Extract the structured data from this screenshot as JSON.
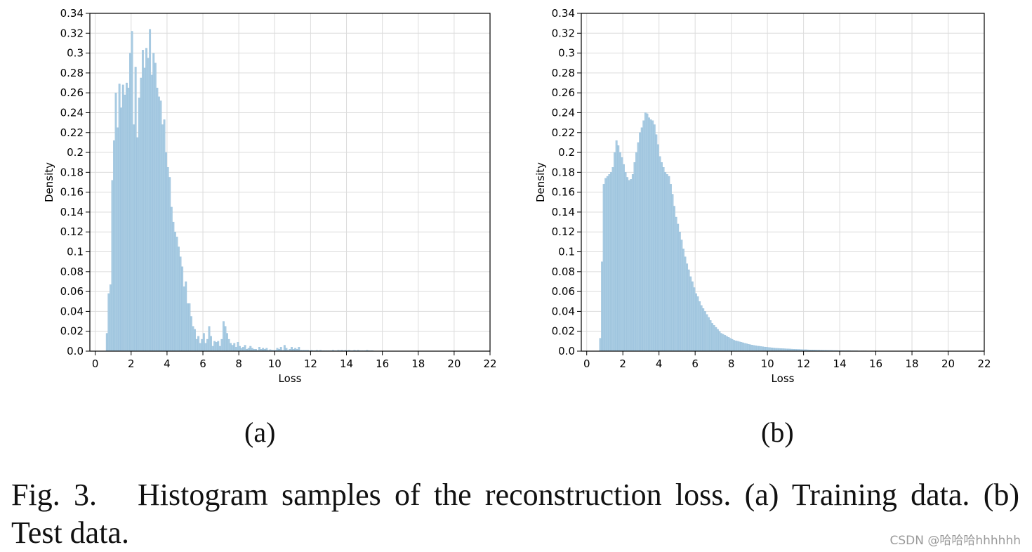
{
  "figure_number": "Fig. 3.",
  "caption_text": "Histogram samples of the reconstruction loss. (a) Training data. (b) Test data.",
  "watermark": "CSDN @哈哈哈hhhhhh",
  "colors": {
    "bar_fill": "#a8cbe2",
    "bar_edge": "#8fb9d8",
    "grid": "#dcdcdc",
    "axis": "#000000"
  },
  "chart_data": [
    {
      "type": "bar",
      "subplot_label": "(a)",
      "title": "",
      "xlabel": "Loss",
      "ylabel": "Density",
      "xlim": [
        -0.3,
        22
      ],
      "ylim": [
        0,
        0.34
      ],
      "xticks": [
        0,
        2,
        4,
        6,
        8,
        10,
        12,
        14,
        16,
        18,
        20,
        22
      ],
      "yticks": [
        0.0,
        0.02,
        0.04,
        0.06,
        0.08,
        0.1,
        0.12,
        0.14,
        0.16,
        0.18,
        0.2,
        0.22,
        0.24,
        0.26,
        0.28,
        0.3,
        0.32,
        0.34
      ],
      "ytick_labels": [
        "0.0",
        "0.02",
        "0.04",
        "0.06",
        "0.08",
        "0.1",
        "0.12",
        "0.14",
        "0.16",
        "0.18",
        "0.2",
        "0.22",
        "0.24",
        "0.26",
        "0.28",
        "0.3",
        "0.32",
        "0.34"
      ],
      "grid": true,
      "series": [
        {
          "name": "Training data",
          "bin_width": 0.1,
          "x": [
            0.6,
            0.7,
            0.8,
            0.9,
            1.0,
            1.1,
            1.2,
            1.3,
            1.4,
            1.5,
            1.6,
            1.7,
            1.8,
            1.9,
            2.0,
            2.1,
            2.2,
            2.3,
            2.4,
            2.5,
            2.6,
            2.7,
            2.8,
            2.9,
            3.0,
            3.1,
            3.2,
            3.3,
            3.4,
            3.5,
            3.6,
            3.7,
            3.8,
            3.9,
            4.0,
            4.1,
            4.2,
            4.3,
            4.4,
            4.5,
            4.6,
            4.7,
            4.8,
            4.9,
            5.0,
            5.1,
            5.2,
            5.3,
            5.4,
            5.5,
            5.6,
            5.7,
            5.8,
            5.9,
            6.0,
            6.1,
            6.2,
            6.3,
            6.4,
            6.5,
            6.6,
            6.7,
            6.8,
            6.9,
            7.0,
            7.1,
            7.2,
            7.3,
            7.4,
            7.5,
            7.6,
            7.7,
            7.8,
            7.9,
            8.0,
            8.1,
            8.2,
            8.3,
            8.4,
            8.5,
            8.6,
            8.7,
            8.8,
            8.9,
            9.0,
            9.1,
            9.2,
            9.3,
            9.4,
            9.5,
            9.6,
            9.7,
            9.8,
            9.9,
            10.0,
            10.1,
            10.2,
            10.3,
            10.4,
            10.5,
            10.6,
            10.7,
            10.8,
            10.9,
            11.0,
            11.1,
            11.2,
            11.3,
            11.4,
            11.5,
            11.6,
            11.7,
            11.8,
            11.9,
            12.0,
            12.1,
            12.2,
            12.3,
            12.4,
            12.5,
            12.6,
            12.7,
            12.8,
            12.9,
            13.0,
            13.1,
            13.2,
            13.3,
            13.4,
            13.5,
            13.6,
            13.7,
            13.8,
            13.9,
            14.0,
            14.1,
            14.2,
            14.3,
            14.4,
            14.5,
            14.6,
            14.7,
            14.8,
            14.9,
            15.0,
            15.1,
            15.2,
            15.3,
            15.4
          ],
          "values": [
            0.018,
            0.058,
            0.067,
            0.172,
            0.212,
            0.26,
            0.225,
            0.269,
            0.245,
            0.268,
            0.258,
            0.27,
            0.265,
            0.3,
            0.322,
            0.228,
            0.286,
            0.215,
            0.255,
            0.275,
            0.303,
            0.285,
            0.305,
            0.295,
            0.324,
            0.278,
            0.3,
            0.29,
            0.265,
            0.256,
            0.252,
            0.228,
            0.233,
            0.2,
            0.185,
            0.175,
            0.145,
            0.13,
            0.12,
            0.115,
            0.105,
            0.095,
            0.085,
            0.065,
            0.07,
            0.048,
            0.048,
            0.035,
            0.025,
            0.022,
            0.012,
            0.015,
            0.008,
            0.012,
            0.018,
            0.008,
            0.012,
            0.025,
            0.015,
            0.005,
            0.01,
            0.009,
            0.01,
            0.005,
            0.012,
            0.03,
            0.025,
            0.018,
            0.012,
            0.008,
            0.006,
            0.008,
            0.004,
            0.009,
            0.005,
            0.003,
            0.004,
            0.006,
            0.002,
            0.003,
            0.005,
            0.003,
            0.002,
            0.002,
            0.001,
            0.004,
            0.002,
            0.003,
            0.002,
            0.003,
            0.001,
            0.0015,
            0.001,
            0.001,
            0.001,
            0.003,
            0.002,
            0.004,
            0.001,
            0.006,
            0.003,
            0.001,
            0.002,
            0.004,
            0.002,
            0.003,
            0.002,
            0.004,
            0.001,
            0.001,
            0.001,
            0.001,
            0.001,
            0.0005,
            0.001,
            0.0005,
            0.0005,
            0.001,
            0.0005,
            0.001,
            0.0005,
            0.0005,
            0.0005,
            0.0005,
            0.0005,
            0.0005,
            0.001,
            0.0005,
            0.0005,
            0.001,
            0.0005,
            0.001,
            0.0005,
            0.001,
            0.0005,
            0.001,
            0.0005,
            0.0005,
            0.001,
            0.0005,
            0.001,
            0.0005,
            0.0005,
            0.0005,
            0.0005,
            0.001,
            0.0005,
            0.0005,
            0.0005
          ]
        }
      ]
    },
    {
      "type": "bar",
      "subplot_label": "(b)",
      "title": "",
      "xlabel": "Loss",
      "ylabel": "Density",
      "xlim": [
        -0.3,
        22
      ],
      "ylim": [
        0,
        0.34
      ],
      "xticks": [
        0,
        2,
        4,
        6,
        8,
        10,
        12,
        14,
        16,
        18,
        20,
        22
      ],
      "yticks": [
        0.0,
        0.02,
        0.04,
        0.06,
        0.08,
        0.1,
        0.12,
        0.14,
        0.16,
        0.18,
        0.2,
        0.22,
        0.24,
        0.26,
        0.28,
        0.3,
        0.32,
        0.34
      ],
      "ytick_labels": [
        "0.0",
        "0.02",
        "0.04",
        "0.06",
        "0.08",
        "0.1",
        "0.12",
        "0.14",
        "0.16",
        "0.18",
        "0.2",
        "0.22",
        "0.24",
        "0.26",
        "0.28",
        "0.3",
        "0.32",
        "0.34"
      ],
      "grid": true,
      "series": [
        {
          "name": "Test data",
          "bin_width": 0.1,
          "x": [
            0.7,
            0.8,
            0.9,
            1.0,
            1.1,
            1.2,
            1.3,
            1.4,
            1.5,
            1.6,
            1.7,
            1.8,
            1.9,
            2.0,
            2.1,
            2.2,
            2.3,
            2.4,
            2.5,
            2.6,
            2.7,
            2.8,
            2.9,
            3.0,
            3.1,
            3.2,
            3.3,
            3.4,
            3.5,
            3.6,
            3.7,
            3.8,
            3.9,
            4.0,
            4.1,
            4.2,
            4.3,
            4.4,
            4.5,
            4.6,
            4.7,
            4.8,
            4.9,
            5.0,
            5.1,
            5.2,
            5.3,
            5.4,
            5.5,
            5.6,
            5.7,
            5.8,
            5.9,
            6.0,
            6.1,
            6.2,
            6.3,
            6.4,
            6.5,
            6.6,
            6.7,
            6.8,
            6.9,
            7.0,
            7.1,
            7.2,
            7.3,
            7.4,
            7.5,
            7.6,
            7.7,
            7.8,
            7.9,
            8.0,
            8.1,
            8.2,
            8.3,
            8.4,
            8.5,
            8.6,
            8.7,
            8.8,
            8.9,
            9.0,
            9.1,
            9.2,
            9.3,
            9.4,
            9.5,
            9.6,
            9.7,
            9.8,
            9.9,
            10.0,
            10.1,
            10.2,
            10.3,
            10.4,
            10.5,
            10.6,
            10.7,
            10.8,
            10.9,
            11.0,
            11.1,
            11.2,
            11.3,
            11.4,
            11.5,
            11.6,
            11.7,
            11.8,
            11.9,
            12.0,
            12.1,
            12.2,
            12.3,
            12.4,
            12.5,
            12.6,
            12.7,
            12.8,
            12.9,
            13.0,
            13.1,
            13.2,
            13.3,
            13.4,
            13.5,
            13.6,
            13.7,
            13.8,
            13.9,
            14.0,
            14.1,
            14.2,
            14.3,
            14.4,
            14.5,
            14.6,
            14.7,
            14.8,
            14.9,
            15.0,
            15.1,
            15.2,
            15.3,
            15.4,
            15.5,
            15.6,
            15.7,
            15.8,
            15.9,
            16.0
          ],
          "values": [
            0.013,
            0.09,
            0.168,
            0.174,
            0.176,
            0.178,
            0.18,
            0.185,
            0.2,
            0.212,
            0.207,
            0.2,
            0.195,
            0.188,
            0.18,
            0.175,
            0.172,
            0.173,
            0.178,
            0.19,
            0.2,
            0.21,
            0.22,
            0.225,
            0.232,
            0.24,
            0.239,
            0.235,
            0.233,
            0.232,
            0.228,
            0.218,
            0.208,
            0.196,
            0.19,
            0.185,
            0.18,
            0.178,
            0.176,
            0.168,
            0.158,
            0.146,
            0.135,
            0.128,
            0.12,
            0.112,
            0.103,
            0.095,
            0.088,
            0.082,
            0.075,
            0.07,
            0.064,
            0.058,
            0.055,
            0.05,
            0.046,
            0.043,
            0.04,
            0.037,
            0.034,
            0.031,
            0.028,
            0.026,
            0.024,
            0.022,
            0.02,
            0.018,
            0.017,
            0.016,
            0.015,
            0.014,
            0.013,
            0.012,
            0.011,
            0.0105,
            0.01,
            0.0095,
            0.009,
            0.0085,
            0.008,
            0.0075,
            0.007,
            0.0066,
            0.0062,
            0.0058,
            0.0055,
            0.0052,
            0.005,
            0.0047,
            0.0045,
            0.0042,
            0.004,
            0.0038,
            0.0036,
            0.0034,
            0.0032,
            0.003,
            0.0029,
            0.0028,
            0.0027,
            0.0026,
            0.0025,
            0.0024,
            0.0023,
            0.0022,
            0.0021,
            0.002,
            0.0019,
            0.0018,
            0.0018,
            0.0017,
            0.0016,
            0.0015,
            0.0015,
            0.0014,
            0.0013,
            0.0013,
            0.0012,
            0.0012,
            0.0011,
            0.0011,
            0.001,
            0.001,
            0.0009,
            0.0009,
            0.0008,
            0.0008,
            0.0008,
            0.0007,
            0.0007,
            0.0007,
            0.0006,
            0.0006,
            0.0006,
            0.0005,
            0.0005,
            0.0005,
            0.0005,
            0.0004,
            0.0004,
            0.0004,
            0.0004,
            0.0003,
            0.0003,
            0.0003,
            0.0003,
            0.0003,
            0.0002,
            0.0002,
            0.0002,
            0.0002,
            0.0002,
            0.0002
          ]
        }
      ]
    }
  ]
}
